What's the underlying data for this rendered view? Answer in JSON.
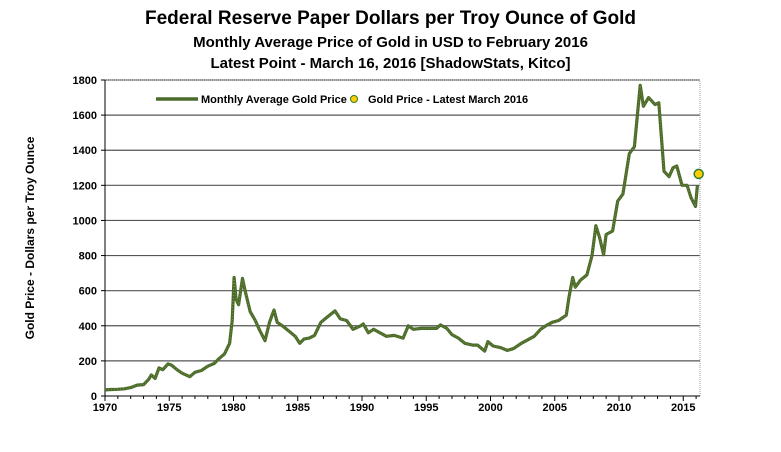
{
  "chart_data": {
    "type": "line",
    "title": "Federal Reserve Paper Dollars per Troy Ounce of Gold",
    "subtitle1": "Monthly Average Price of Gold in USD to February 2016",
    "subtitle2": "Latest Point - March 16, 2016 [ShadowStats, Kitco]",
    "xlabel": "",
    "ylabel": "Gold Price - Dollars per Troy Ounce",
    "xlim": [
      1970,
      2016.5
    ],
    "ylim": [
      0,
      1800
    ],
    "xticks": [
      "1970",
      "1975",
      "1980",
      "1985",
      "1990",
      "1995",
      "2000",
      "2005",
      "2010",
      "2015"
    ],
    "yticks": [
      "0",
      "200",
      "400",
      "600",
      "800",
      "1000",
      "1200",
      "1400",
      "1600",
      "1800"
    ],
    "grid": "horizontal",
    "legend_position": "top",
    "series": [
      {
        "name": "Monthly Average Gold Price",
        "color": "#4a6b2a",
        "x": [
          1970.0,
          1970.5,
          1971.0,
          1971.5,
          1972.0,
          1972.5,
          1973.0,
          1973.4,
          1973.6,
          1973.9,
          1974.2,
          1974.5,
          1974.9,
          1975.2,
          1975.6,
          1976.0,
          1976.6,
          1977.0,
          1977.5,
          1978.0,
          1978.5,
          1978.9,
          1979.3,
          1979.7,
          1979.9,
          1980.05,
          1980.2,
          1980.4,
          1980.7,
          1980.9,
          1981.3,
          1981.7,
          1982.0,
          1982.45,
          1982.8,
          1983.15,
          1983.4,
          1983.8,
          1984.3,
          1984.8,
          1985.15,
          1985.5,
          1985.9,
          1986.3,
          1986.8,
          1987.3,
          1987.9,
          1988.3,
          1988.8,
          1989.3,
          1989.9,
          1990.1,
          1990.5,
          1990.9,
          1991.4,
          1991.9,
          1992.5,
          1993.2,
          1993.6,
          1994.0,
          1994.6,
          1995.2,
          1995.8,
          1996.1,
          1996.6,
          1997.0,
          1997.5,
          1998.0,
          1998.6,
          1999.0,
          1999.55,
          1999.8,
          2000.2,
          2000.8,
          2001.3,
          2001.8,
          2002.4,
          2002.9,
          2003.4,
          2003.9,
          2004.3,
          2004.8,
          2005.3,
          2005.9,
          2006.1,
          2006.4,
          2006.6,
          2007.0,
          2007.5,
          2007.9,
          2008.2,
          2008.5,
          2008.8,
          2009.0,
          2009.5,
          2009.9,
          2010.3,
          2010.8,
          2011.2,
          2011.65,
          2011.9,
          2012.3,
          2012.8,
          2013.1,
          2013.5,
          2013.9,
          2014.2,
          2014.5,
          2014.9,
          2015.3,
          2015.6,
          2015.95,
          2016.1
        ],
        "values": [
          35,
          37,
          38,
          41,
          48,
          62,
          65,
          95,
          120,
          100,
          160,
          150,
          183,
          175,
          150,
          130,
          110,
          135,
          145,
          170,
          185,
          215,
          240,
          300,
          430,
          675,
          550,
          520,
          670,
          600,
          480,
          430,
          380,
          315,
          420,
          490,
          420,
          400,
          370,
          340,
          300,
          325,
          330,
          345,
          420,
          450,
          485,
          440,
          430,
          380,
          400,
          410,
          360,
          380,
          360,
          340,
          345,
          330,
          400,
          380,
          385,
          385,
          385,
          405,
          385,
          350,
          330,
          300,
          290,
          290,
          256,
          310,
          285,
          275,
          260,
          270,
          300,
          320,
          340,
          380,
          400,
          420,
          430,
          460,
          560,
          675,
          620,
          660,
          690,
          800,
          970,
          900,
          805,
          920,
          940,
          1110,
          1150,
          1380,
          1420,
          1770,
          1650,
          1700,
          1660,
          1670,
          1280,
          1250,
          1300,
          1310,
          1200,
          1200,
          1130,
          1080,
          1200
        ]
      },
      {
        "name": "Gold Price - Latest March 2016",
        "color": "#ffcc00",
        "x": [
          2016.2
        ],
        "values": [
          1265
        ]
      }
    ]
  }
}
